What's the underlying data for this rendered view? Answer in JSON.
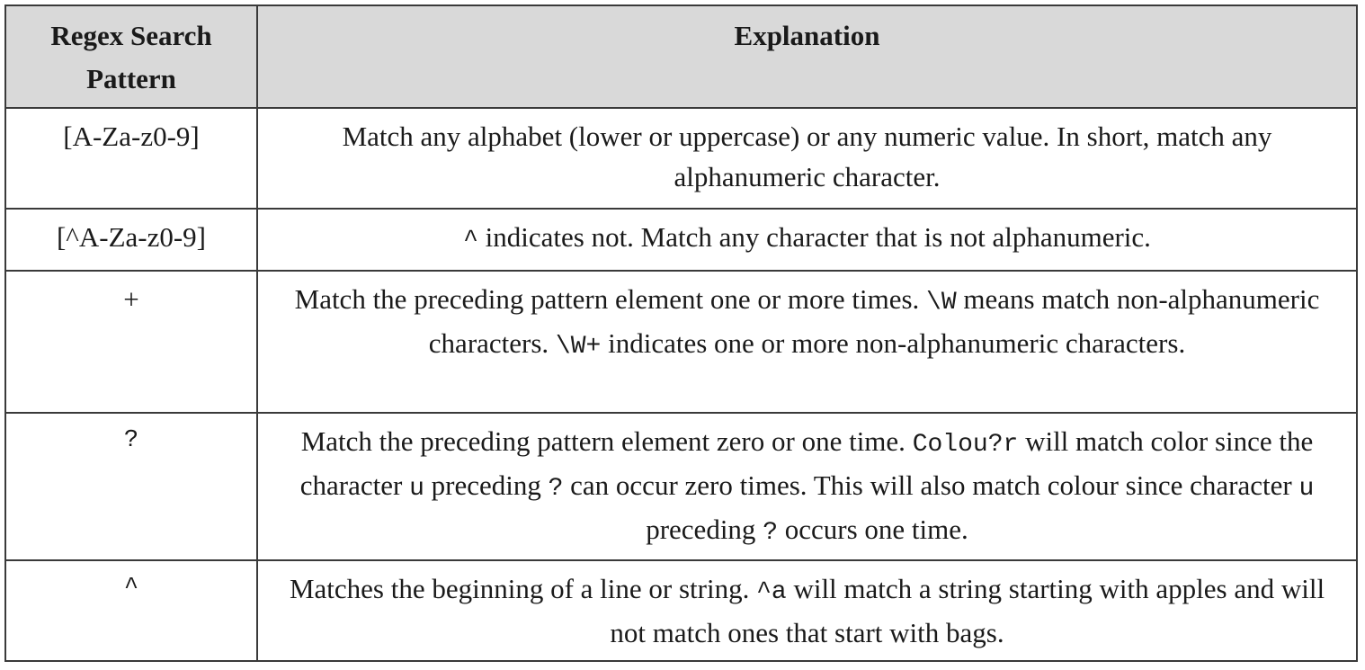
{
  "table": {
    "headers": {
      "pattern": "Regex Search Pattern",
      "explanation": "Explanation"
    },
    "rows": [
      {
        "pattern": "[A-Za-z0-9]",
        "explanation": [
          {
            "t": "Match any alphabet (lower or uppercase) or any numeric value. In short, match any alphanumeric character."
          }
        ]
      },
      {
        "pattern": "[^A-Za-z0-9]",
        "explanation": [
          {
            "t": "^",
            "code": true
          },
          {
            "t": " indicates not. Match any character that is not alphanumeric."
          }
        ]
      },
      {
        "pattern": "+",
        "explanation": [
          {
            "t": "Match the preceding pattern element one or more times. "
          },
          {
            "t": "\\W",
            "code": true
          },
          {
            "t": " means match non-alphanumeric characters. "
          },
          {
            "t": "\\W+",
            "code": true
          },
          {
            "t": " indicates one or more non-alphanumeric characters."
          }
        ]
      },
      {
        "pattern": "?",
        "explanation": [
          {
            "t": "Match the preceding pattern element zero or one time. "
          },
          {
            "t": "Colou?r",
            "code": true
          },
          {
            "t": " will match color since the character "
          },
          {
            "t": "u",
            "code": true
          },
          {
            "t": " preceding "
          },
          {
            "t": "?",
            "code": true
          },
          {
            "t": " can occur zero times. This will also match colour since character "
          },
          {
            "t": "u",
            "code": true
          },
          {
            "t": " preceding "
          },
          {
            "t": "?",
            "code": true
          },
          {
            "t": " occurs one time."
          }
        ]
      },
      {
        "pattern": "^",
        "explanation": [
          {
            "t": "Matches the beginning of a line or string. "
          },
          {
            "t": "^a",
            "code": true
          },
          {
            "t": " will match a string starting with apples and will not match ones that start with bags."
          }
        ]
      }
    ]
  }
}
